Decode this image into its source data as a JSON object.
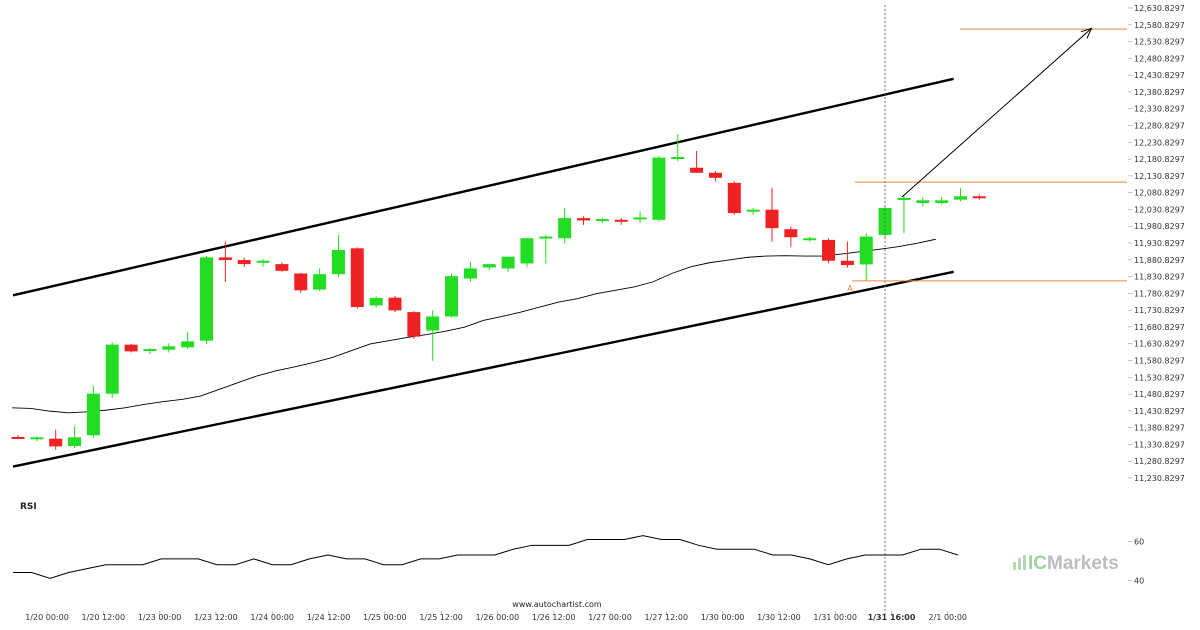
{
  "chart_data": {
    "type": "candlestick",
    "price_axis": {
      "ticks": [
        "12,630.8297",
        "12,580.8297",
        "12,530.8297",
        "12,480.8297",
        "12,430.8297",
        "12,380.8297",
        "12,330.8297",
        "12,280.8297",
        "12,230.8297",
        "12,180.8297",
        "12,130.8297",
        "12,080.8297",
        "12,030.8297",
        "11,980.8297",
        "11,930.8297",
        "11,880.8297",
        "11,830.8297",
        "11,780.8297",
        "11,730.8297",
        "11,680.8297",
        "11,630.8297",
        "11,580.8297",
        "11,530.8297",
        "11,480.8297",
        "11,430.8297",
        "11,380.8297",
        "11,330.8297",
        "11,280.8297",
        "11,230.8297"
      ],
      "min": 11230.8297,
      "max": 12630.8297
    },
    "time_axis": {
      "ticks": [
        "1/20 00:00",
        "1/20 12:00",
        "1/23 00:00",
        "1/23 12:00",
        "1/24 00:00",
        "1/24 12:00",
        "1/25 00:00",
        "1/25 12:00",
        "1/26 00:00",
        "1/26 12:00",
        "1/27 00:00",
        "1/27 12:00",
        "1/30 00:00",
        "1/30 12:00",
        "1/31 00:00",
        "1/31 16:00",
        "2/1 00:00"
      ],
      "highlighted": "1/31 16:00"
    },
    "candles": [
      {
        "o": 11353,
        "h": 11358,
        "l": 11348,
        "c": 11351
      },
      {
        "o": 11350,
        "h": 11355,
        "l": 11340,
        "c": 11352
      },
      {
        "o": 11348,
        "h": 11375,
        "l": 11315,
        "c": 11325
      },
      {
        "o": 11326,
        "h": 11385,
        "l": 11320,
        "c": 11352
      },
      {
        "o": 11358,
        "h": 11505,
        "l": 11350,
        "c": 11482
      },
      {
        "o": 11482,
        "h": 11635,
        "l": 11470,
        "c": 11628
      },
      {
        "o": 11628,
        "h": 11630,
        "l": 11605,
        "c": 11608
      },
      {
        "o": 11610,
        "h": 11618,
        "l": 11600,
        "c": 11615
      },
      {
        "o": 11613,
        "h": 11632,
        "l": 11605,
        "c": 11623
      },
      {
        "o": 11620,
        "h": 11665,
        "l": 11615,
        "c": 11638
      },
      {
        "o": 11640,
        "h": 11892,
        "l": 11630,
        "c": 11888
      },
      {
        "o": 11888,
        "h": 11935,
        "l": 11815,
        "c": 11880
      },
      {
        "o": 11880,
        "h": 11887,
        "l": 11860,
        "c": 11868
      },
      {
        "o": 11872,
        "h": 11883,
        "l": 11860,
        "c": 11878
      },
      {
        "o": 11868,
        "h": 11873,
        "l": 11845,
        "c": 11848
      },
      {
        "o": 11840,
        "h": 11842,
        "l": 11783,
        "c": 11790
      },
      {
        "o": 11792,
        "h": 11855,
        "l": 11788,
        "c": 11838
      },
      {
        "o": 11838,
        "h": 11955,
        "l": 11830,
        "c": 11910
      },
      {
        "o": 11915,
        "h": 11918,
        "l": 11735,
        "c": 11740
      },
      {
        "o": 11745,
        "h": 11772,
        "l": 11738,
        "c": 11767
      },
      {
        "o": 11768,
        "h": 11773,
        "l": 11725,
        "c": 11730
      },
      {
        "o": 11725,
        "h": 11728,
        "l": 11645,
        "c": 11652
      },
      {
        "o": 11670,
        "h": 11730,
        "l": 11580,
        "c": 11712
      },
      {
        "o": 11712,
        "h": 11840,
        "l": 11708,
        "c": 11832
      },
      {
        "o": 11825,
        "h": 11875,
        "l": 11815,
        "c": 11855
      },
      {
        "o": 11858,
        "h": 11865,
        "l": 11850,
        "c": 11868
      },
      {
        "o": 11855,
        "h": 11885,
        "l": 11845,
        "c": 11890
      },
      {
        "o": 11870,
        "h": 11945,
        "l": 11858,
        "c": 11945
      },
      {
        "o": 11945,
        "h": 11955,
        "l": 11870,
        "c": 11950
      },
      {
        "o": 11945,
        "h": 12035,
        "l": 11930,
        "c": 12005
      },
      {
        "o": 12005,
        "h": 12010,
        "l": 11985,
        "c": 11998
      },
      {
        "o": 12000,
        "h": 12005,
        "l": 11990,
        "c": 12002
      },
      {
        "o": 12000,
        "h": 12005,
        "l": 11985,
        "c": 11998
      },
      {
        "o": 12002,
        "h": 12025,
        "l": 11990,
        "c": 12007
      },
      {
        "o": 12000,
        "h": 12190,
        "l": 11995,
        "c": 12185
      },
      {
        "o": 12185,
        "h": 12255,
        "l": 12175,
        "c": 12187
      },
      {
        "o": 12155,
        "h": 12205,
        "l": 12140,
        "c": 12140
      },
      {
        "o": 12140,
        "h": 12145,
        "l": 12115,
        "c": 12125
      },
      {
        "o": 12110,
        "h": 12115,
        "l": 12015,
        "c": 12020
      },
      {
        "o": 12025,
        "h": 12035,
        "l": 12015,
        "c": 12030
      },
      {
        "o": 12030,
        "h": 12095,
        "l": 11935,
        "c": 11975
      },
      {
        "o": 11972,
        "h": 11980,
        "l": 11920,
        "c": 11948
      },
      {
        "o": 11942,
        "h": 11950,
        "l": 11935,
        "c": 11945
      },
      {
        "o": 11940,
        "h": 11945,
        "l": 11870,
        "c": 11878
      },
      {
        "o": 11878,
        "h": 11935,
        "l": 11858,
        "c": 11865
      },
      {
        "o": 11867,
        "h": 11960,
        "l": 11818,
        "c": 11950
      },
      {
        "o": 11955,
        "h": 12040,
        "l": 11945,
        "c": 12035
      },
      {
        "o": 12060,
        "h": 12075,
        "l": 11960,
        "c": 12065
      },
      {
        "o": 12050,
        "h": 12068,
        "l": 12040,
        "c": 12058
      },
      {
        "o": 12050,
        "h": 12068,
        "l": 12045,
        "c": 12058
      },
      {
        "o": 12060,
        "h": 12095,
        "l": 12055,
        "c": 12070
      },
      {
        "o": 12070,
        "h": 12075,
        "l": 12060,
        "c": 12065
      }
    ],
    "moving_average": [
      11440,
      11438,
      11430,
      11425,
      11428,
      11433,
      11440,
      11450,
      11458,
      11465,
      11475,
      11495,
      11515,
      11535,
      11550,
      11562,
      11575,
      11590,
      11610,
      11630,
      11640,
      11650,
      11658,
      11668,
      11680,
      11700,
      11712,
      11725,
      11740,
      11755,
      11765,
      11780,
      11790,
      11800,
      11815,
      11840,
      11860,
      11872,
      11880,
      11888,
      11892,
      11893,
      11892,
      11892,
      11898,
      11905,
      11912,
      11920,
      11930,
      11942
    ],
    "channel": {
      "upper": {
        "from_index": 0,
        "from_value": 11775,
        "to_index": 49,
        "to_value": 12420
      },
      "lower": {
        "from_index": 0,
        "from_value": 11265,
        "to_index": 49,
        "to_value": 11845
      }
    },
    "levels": {
      "upper_level": 12112,
      "target_level": 12568,
      "lower_level": 11818
    },
    "projection": {
      "from_index": 47,
      "from_value": 12068,
      "to_index": 57,
      "to_value": 12570
    },
    "pattern_point_label": "A",
    "rsi": {
      "label": "RSI",
      "ticks": [
        "60",
        "40"
      ],
      "min": 35,
      "max": 70,
      "values": [
        44,
        44,
        41,
        44,
        46,
        48,
        48,
        48,
        51,
        51,
        51,
        48,
        48,
        51,
        48,
        48,
        51,
        53,
        51,
        51,
        48,
        48,
        51,
        51,
        53,
        53,
        53,
        56,
        58,
        58,
        58,
        61,
        61,
        61,
        63,
        61,
        61,
        58,
        56,
        56,
        56,
        53,
        53,
        51,
        48,
        51,
        53,
        53,
        53,
        56,
        56,
        53
      ]
    },
    "colors": {
      "bull": "#22dd22",
      "bear": "#ee2222",
      "channel": "#000000",
      "moving_average": "#000000",
      "level": "#e8893a",
      "pattern_point": "#e8893a",
      "projection": "#000000",
      "grid": "#dddddd"
    }
  },
  "footer": {
    "source": "www.autochartist.com"
  },
  "brand": {
    "part1": "IC",
    "part2": "Markets"
  }
}
